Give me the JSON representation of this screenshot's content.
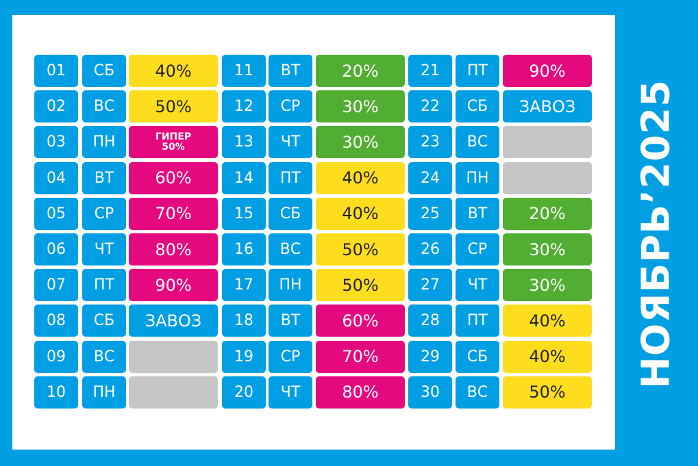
{
  "title": "НОЯБРЬ’2025",
  "colors": {
    "blue": "#009fe3",
    "yellow": "#fedd1f",
    "magenta": "#e5097f",
    "green": "#52ae32",
    "gray": "#c6c6c6"
  },
  "days": [
    {
      "num": "01",
      "dow": "СБ",
      "value": "40%",
      "color": "yellow"
    },
    {
      "num": "02",
      "dow": "ВС",
      "value": "50%",
      "color": "yellow"
    },
    {
      "num": "03",
      "dow": "ПН",
      "value": "ГИПЕР",
      "value2": "50%",
      "color": "magenta"
    },
    {
      "num": "04",
      "dow": "ВТ",
      "value": "60%",
      "color": "magenta"
    },
    {
      "num": "05",
      "dow": "СР",
      "value": "70%",
      "color": "magenta"
    },
    {
      "num": "06",
      "dow": "ЧТ",
      "value": "80%",
      "color": "magenta"
    },
    {
      "num": "07",
      "dow": "ПТ",
      "value": "90%",
      "color": "magenta"
    },
    {
      "num": "08",
      "dow": "СБ",
      "value": "ЗАВОЗ",
      "color": "blue"
    },
    {
      "num": "09",
      "dow": "ВС",
      "value": "",
      "color": "gray"
    },
    {
      "num": "10",
      "dow": "ПН",
      "value": "",
      "color": "gray"
    },
    {
      "num": "11",
      "dow": "ВТ",
      "value": "20%",
      "color": "green"
    },
    {
      "num": "12",
      "dow": "СР",
      "value": "30%",
      "color": "green"
    },
    {
      "num": "13",
      "dow": "ЧТ",
      "value": "30%",
      "color": "green"
    },
    {
      "num": "14",
      "dow": "ПТ",
      "value": "40%",
      "color": "yellow"
    },
    {
      "num": "15",
      "dow": "СБ",
      "value": "40%",
      "color": "yellow"
    },
    {
      "num": "16",
      "dow": "ВС",
      "value": "50%",
      "color": "yellow"
    },
    {
      "num": "17",
      "dow": "ПН",
      "value": "50%",
      "color": "yellow"
    },
    {
      "num": "18",
      "dow": "ВТ",
      "value": "60%",
      "color": "magenta"
    },
    {
      "num": "19",
      "dow": "СР",
      "value": "70%",
      "color": "magenta"
    },
    {
      "num": "20",
      "dow": "ЧТ",
      "value": "80%",
      "color": "magenta"
    },
    {
      "num": "21",
      "dow": "ПТ",
      "value": "90%",
      "color": "magenta"
    },
    {
      "num": "22",
      "dow": "СБ",
      "value": "ЗАВОЗ",
      "color": "blue"
    },
    {
      "num": "23",
      "dow": "ВС",
      "value": "",
      "color": "gray"
    },
    {
      "num": "24",
      "dow": "ПН",
      "value": "",
      "color": "gray"
    },
    {
      "num": "25",
      "dow": "ВТ",
      "value": "20%",
      "color": "green"
    },
    {
      "num": "26",
      "dow": "СР",
      "value": "30%",
      "color": "green"
    },
    {
      "num": "27",
      "dow": "ЧТ",
      "value": "30%",
      "color": "green"
    },
    {
      "num": "28",
      "dow": "ПТ",
      "value": "40%",
      "color": "yellow"
    },
    {
      "num": "29",
      "dow": "СБ",
      "value": "40%",
      "color": "yellow"
    },
    {
      "num": "30",
      "dow": "ВС",
      "value": "50%",
      "color": "yellow"
    }
  ]
}
